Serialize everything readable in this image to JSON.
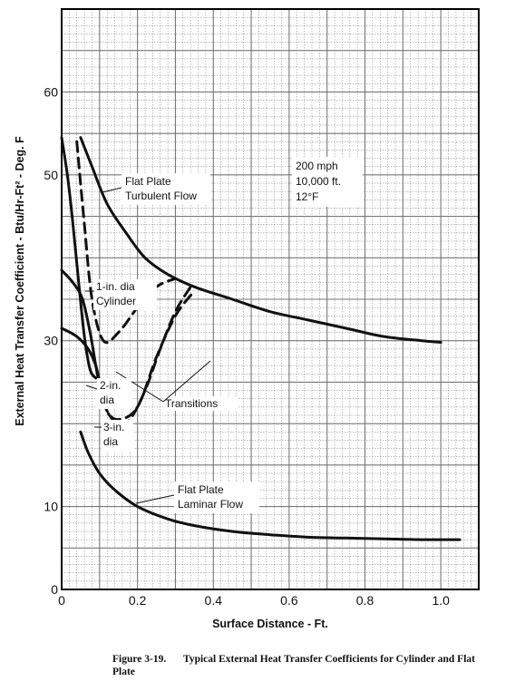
{
  "chart_data": {
    "type": "line",
    "xlabel": "Surface Distance - Ft.",
    "ylabel": "External Heat Transfer Coefficient - Btu/Hr-Ft² - Deg. F",
    "xlim": [
      0,
      1.1
    ],
    "ylim": [
      0,
      70
    ],
    "x_ticks": [
      "0",
      "0.2",
      "0.4",
      "0.6",
      "0.8",
      "1.0"
    ],
    "y_ticks": [
      "0",
      "10",
      "30",
      "50",
      "60"
    ],
    "grid": true,
    "conditions": [
      "200 mph",
      "10,000 ft.",
      "12°F"
    ],
    "series": [
      {
        "name": "Flat Plate Turbulent Flow",
        "style": "solid",
        "x": [
          0.05,
          0.08,
          0.12,
          0.17,
          0.22,
          0.28,
          0.35,
          0.45,
          0.55,
          0.65,
          0.75,
          0.85,
          0.95,
          1.0
        ],
        "y": [
          54.5,
          51,
          46.5,
          43,
          40,
          38,
          36.5,
          35,
          33.5,
          32.5,
          31.5,
          30.5,
          30,
          29.8
        ]
      },
      {
        "name": "Flat Plate Laminar Flow",
        "style": "solid",
        "x": [
          0.05,
          0.07,
          0.1,
          0.14,
          0.2,
          0.28,
          0.35,
          0.45,
          0.55,
          0.65,
          0.75,
          0.85,
          0.95,
          1.05
        ],
        "y": [
          19,
          16.5,
          14,
          12,
          10,
          8.5,
          7.7,
          7,
          6.6,
          6.3,
          6.2,
          6.1,
          6.0,
          6.0
        ]
      },
      {
        "name": "1-in. dia Cylinder",
        "style": "solid",
        "x": [
          0.0,
          0.015,
          0.03,
          0.045,
          0.06,
          0.075,
          0.09
        ],
        "y": [
          54.5,
          50,
          44,
          37,
          30.5,
          26.5,
          25.5
        ]
      },
      {
        "name": "2-in. dia",
        "style": "solid",
        "x": [
          0.0,
          0.03,
          0.055,
          0.075,
          0.09,
          0.1
        ],
        "y": [
          38.5,
          37,
          35,
          31,
          27,
          24.5
        ]
      },
      {
        "name": "3-in. dia",
        "style": "solid",
        "x": [
          0.0,
          0.04,
          0.07,
          0.09,
          0.1
        ],
        "y": [
          31.5,
          30.5,
          29,
          27,
          25
        ]
      },
      {
        "name": "Transition (1-in. dia)",
        "style": "dashed",
        "x": [
          0.04,
          0.06,
          0.08,
          0.11,
          0.15,
          0.2,
          0.25,
          0.3
        ],
        "y": [
          54,
          44,
          35,
          30,
          31,
          34,
          36.5,
          37.5
        ]
      },
      {
        "name": "Transition (2-in. dia)",
        "style": "dashed",
        "x": [
          0.1,
          0.12,
          0.15,
          0.2,
          0.25,
          0.3,
          0.35
        ],
        "y": [
          24.5,
          21.5,
          20.5,
          22,
          28,
          33,
          36
        ]
      },
      {
        "name": "Transition (3-in. dia)",
        "style": "dashed",
        "x": [
          0.1,
          0.12,
          0.15,
          0.18,
          0.22,
          0.26,
          0.3,
          0.34
        ],
        "y": [
          25,
          21.5,
          20,
          20.5,
          24,
          29,
          33.5,
          36.5
        ]
      }
    ],
    "labels": {
      "turbulent": [
        "Flat Plate",
        "Turbulent Flow"
      ],
      "laminar": [
        "Flat Plate",
        "Laminar Flow"
      ],
      "cyl1": [
        "1-in. dia",
        "Cylinder"
      ],
      "cyl2": [
        "2-in.",
        "dia"
      ],
      "cyl3": [
        "3-in.",
        "dia"
      ],
      "transitions": "Transitions"
    }
  },
  "caption": {
    "label": "Figure 3-19.",
    "text": "Typical External Heat Transfer Coefficients for Cylinder and Flat Plate"
  }
}
